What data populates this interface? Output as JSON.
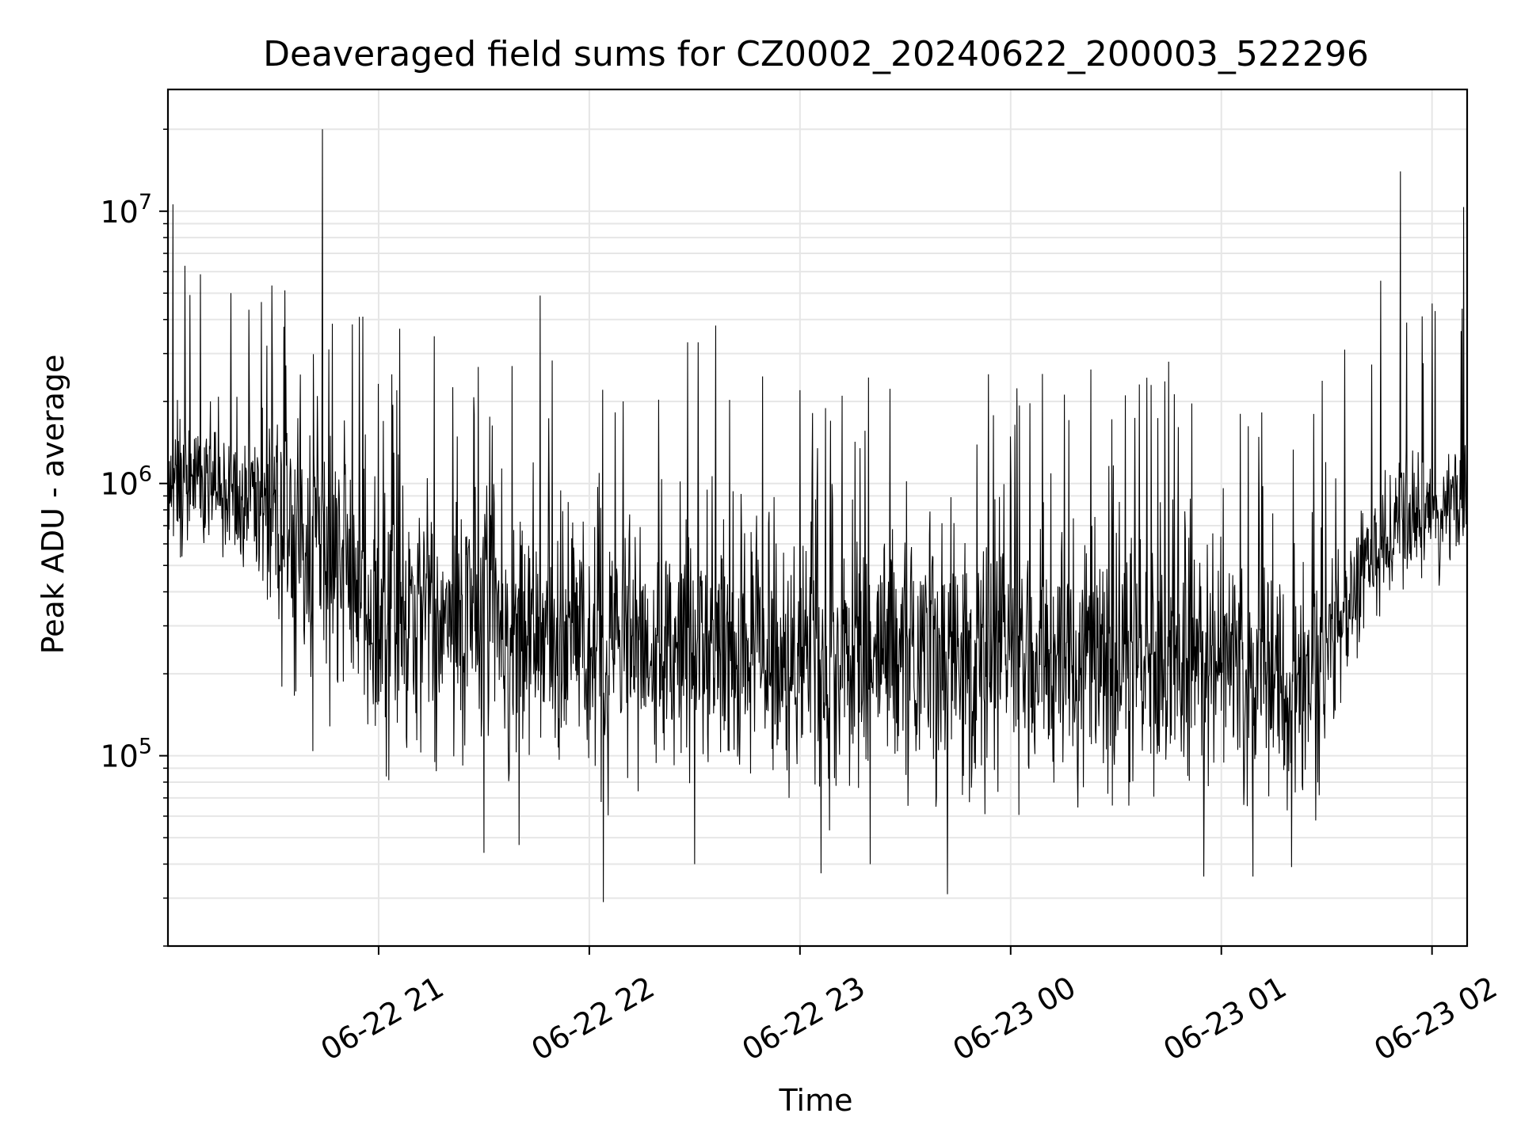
{
  "chart_data": {
    "type": "line",
    "title": "Deaveraged field sums for CZ0002_20240622_200003_522296",
    "xlabel": "Time",
    "ylabel": "Peak ADU - average",
    "x_range": [
      "2024-06-22 20:00",
      "2024-06-23 02:10"
    ],
    "ylim": [
      20000,
      28000000
    ],
    "yscale": "log",
    "grid": true,
    "legend": "none",
    "line_color": "#000000",
    "grid_color": "#e6e6e6",
    "x_ticks": [
      {
        "t": "2024-06-22 21:00",
        "label": "06-22 21"
      },
      {
        "t": "2024-06-22 22:00",
        "label": "06-22 22"
      },
      {
        "t": "2024-06-22 23:00",
        "label": "06-22 23"
      },
      {
        "t": "2024-06-23 00:00",
        "label": "06-23 00"
      },
      {
        "t": "2024-06-23 01:00",
        "label": "06-23 01"
      },
      {
        "t": "2024-06-23 02:00",
        "label": "06-23 02"
      }
    ],
    "y_ticks": [
      {
        "value": 100000,
        "base": "10",
        "exp": "5"
      },
      {
        "value": 1000000,
        "base": "10",
        "exp": "6"
      },
      {
        "value": 10000000,
        "base": "10",
        "exp": "7"
      }
    ],
    "series": [
      {
        "baseline": [
          {
            "t": "2024-06-22 20:00",
            "v": 1100000
          },
          {
            "t": "2024-06-22 20:20",
            "v": 950000
          },
          {
            "t": "2024-06-22 20:30",
            "v": 700000
          },
          {
            "t": "2024-06-22 20:45",
            "v": 480000
          },
          {
            "t": "2024-06-22 21:00",
            "v": 330000
          },
          {
            "t": "2024-06-22 21:30",
            "v": 300000
          },
          {
            "t": "2024-06-22 22:00",
            "v": 260000
          },
          {
            "t": "2024-06-22 23:00",
            "v": 230000
          },
          {
            "t": "2024-06-23 00:00",
            "v": 240000
          },
          {
            "t": "2024-06-23 00:40",
            "v": 230000
          },
          {
            "t": "2024-06-23 01:00",
            "v": 220000
          },
          {
            "t": "2024-06-23 01:20",
            "v": 180000
          },
          {
            "t": "2024-06-23 01:30",
            "v": 240000
          },
          {
            "t": "2024-06-23 01:40",
            "v": 450000
          },
          {
            "t": "2024-06-23 01:50",
            "v": 680000
          },
          {
            "t": "2024-06-23 02:10",
            "v": 950000
          }
        ],
        "peaks": [
          {
            "t": "2024-06-22 20:44",
            "v": 20000000
          },
          {
            "t": "2024-06-22 21:06",
            "v": 3700000
          },
          {
            "t": "2024-06-22 21:46",
            "v": 4900000
          },
          {
            "t": "2024-06-22 22:36",
            "v": 3800000
          },
          {
            "t": "2024-06-22 22:31",
            "v": 3300000
          },
          {
            "t": "2024-06-23 00:45",
            "v": 2800000
          },
          {
            "t": "2024-06-23 01:51",
            "v": 14000000
          },
          {
            "t": "2024-06-22 21:38",
            "v": 2700000
          },
          {
            "t": "2024-06-22 22:28",
            "v": 3300000
          },
          {
            "t": "2024-06-22 23:00",
            "v": 2200000
          },
          {
            "t": "2024-06-22 23:12",
            "v": 2100000
          },
          {
            "t": "2024-06-23 00:40",
            "v": 2300000
          }
        ],
        "troughs": [
          {
            "t": "2024-06-22 22:04",
            "v": 29000
          },
          {
            "t": "2024-06-22 23:42",
            "v": 31000
          },
          {
            "t": "2024-06-23 00:55",
            "v": 36000
          },
          {
            "t": "2024-06-23 01:09",
            "v": 36000
          },
          {
            "t": "2024-06-22 23:06",
            "v": 37000
          },
          {
            "t": "2024-06-22 21:30",
            "v": 44000
          },
          {
            "t": "2024-06-23 01:20",
            "v": 39000
          },
          {
            "t": "2024-06-22 22:30",
            "v": 40000
          },
          {
            "t": "2024-06-22 21:40",
            "v": 47000
          },
          {
            "t": "2024-06-22 23:20",
            "v": 40000
          }
        ]
      }
    ]
  }
}
